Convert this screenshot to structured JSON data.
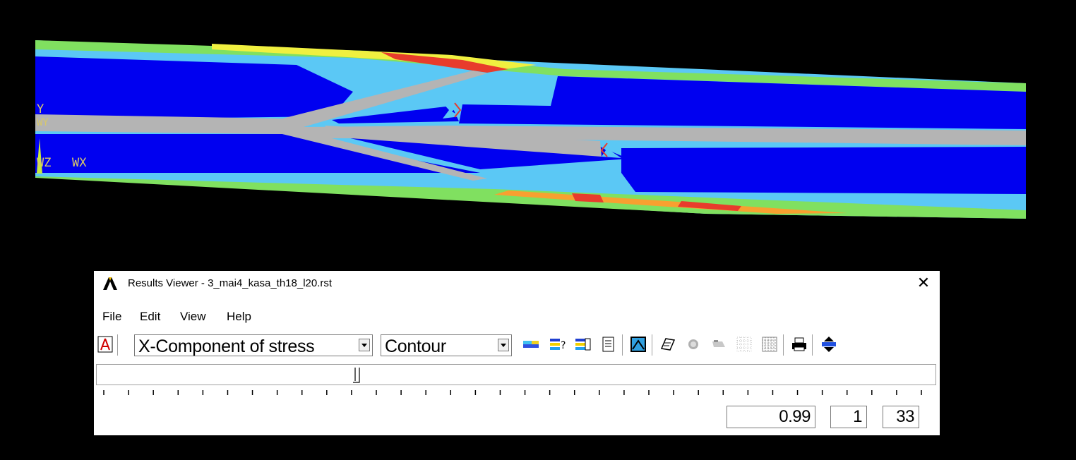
{
  "viewport": {
    "triad_labels": {
      "y": "Y",
      "wy": "WY",
      "z": "Z",
      "wz": "WZ",
      "wx": "WX"
    },
    "colors": {
      "background": "#000000",
      "contour_dark_blue": "#0000f0",
      "contour_light_blue": "#5bc8f5",
      "contour_cyan": "#4fe0e0",
      "contour_green": "#80e060",
      "contour_yellow": "#f0f040",
      "contour_orange": "#f8a030",
      "contour_red": "#e83c2c",
      "undeformed_gray": "#b4b4b4"
    }
  },
  "dialog": {
    "title": "Results Viewer - 3_mai4_kasa_th18_l20.rst",
    "menu": [
      "File",
      "Edit",
      "View",
      "Help"
    ],
    "result_item": "X-Component of stress",
    "plot_style": "Contour",
    "toolbar_icons": [
      "legend-icon",
      "query-icon",
      "query-list-icon",
      "list-icon",
      "capture-icon",
      "animate-icon",
      "image-icon",
      "save-image-icon",
      "dotted-grid-icon",
      "dense-grid-icon",
      "print-icon",
      "expand-icon"
    ],
    "slider_position": 0.31,
    "fields": {
      "time": "0.99",
      "set": "1",
      "total": "33"
    }
  }
}
